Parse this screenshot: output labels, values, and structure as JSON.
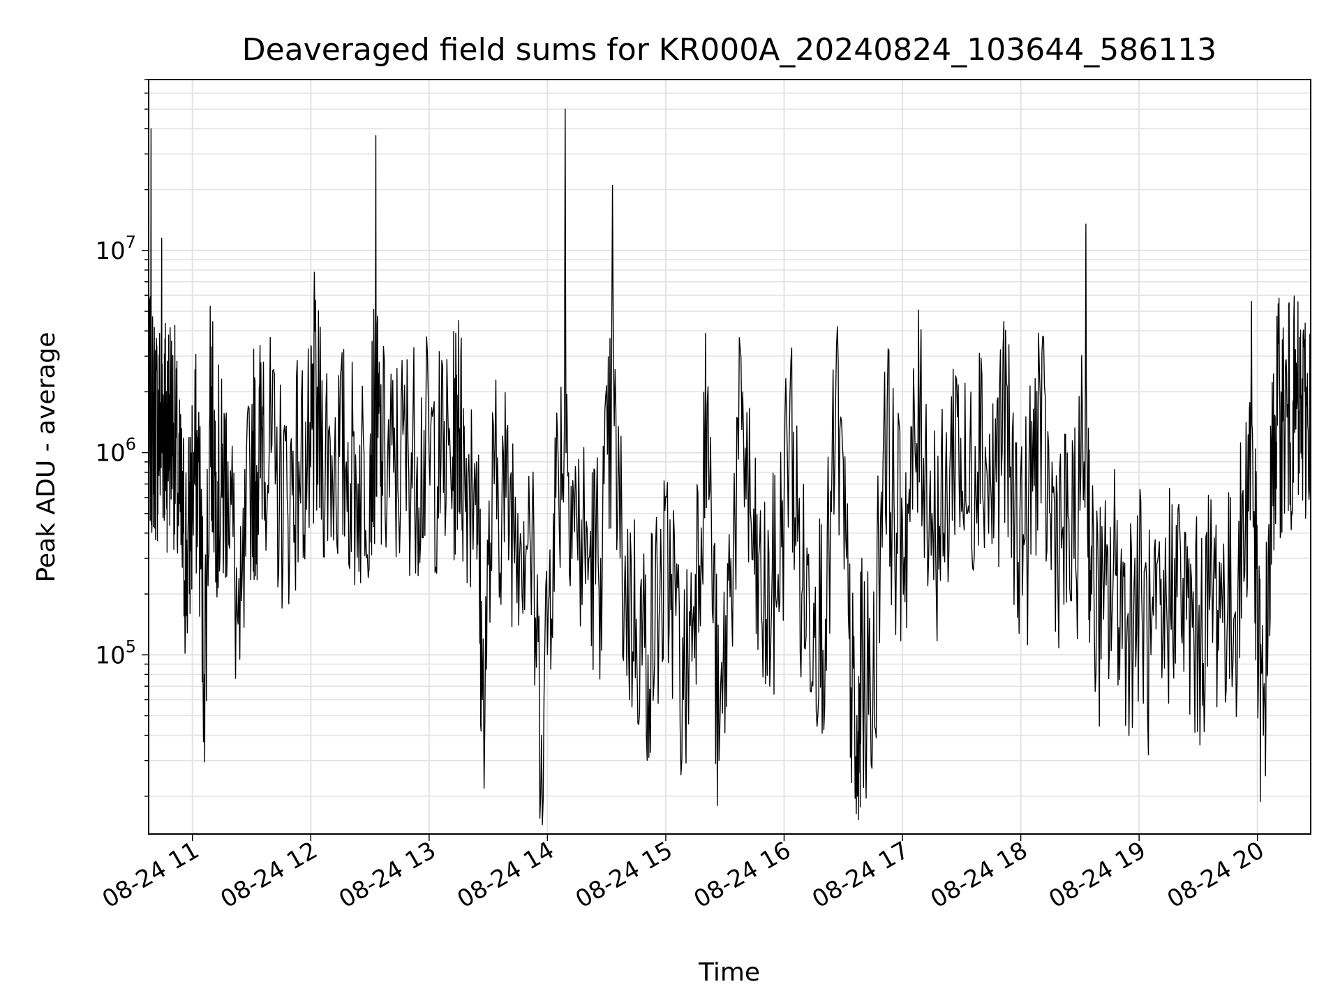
{
  "chart_data": {
    "type": "line",
    "title": "Deaveraged field sums for KR000A_20240824_103644_586113",
    "xlabel": "Time",
    "ylabel": "Peak ADU - average",
    "yscale": "log",
    "grid": true,
    "x_ticks": [
      "08-24 11",
      "08-24 12",
      "08-24 13",
      "08-24 14",
      "08-24 15",
      "08-24 16",
      "08-24 17",
      "08-24 18",
      "08-24 19",
      "08-24 20"
    ],
    "y_ticks": [
      {
        "value": 100000,
        "base": "10",
        "exp": "5"
      },
      {
        "value": 1000000,
        "base": "10",
        "exp": "6"
      },
      {
        "value": 10000000,
        "base": "10",
        "exp": "7"
      }
    ],
    "xlim_hours": [
      10.63,
      20.45
    ],
    "ylim": [
      13000,
      70000000
    ],
    "line_color": "#000000",
    "series": [
      {
        "x_hours": [
          10.63,
          10.65,
          10.68,
          10.71,
          10.74,
          10.76,
          10.78,
          10.8,
          10.84,
          10.88,
          10.92,
          10.96,
          11.0,
          11.05,
          11.1,
          11.15,
          11.2,
          11.25,
          11.3,
          11.4,
          11.5,
          11.55,
          11.6,
          11.7,
          11.8,
          11.9,
          12.0,
          12.03,
          12.1,
          12.2,
          12.3,
          12.4,
          12.5,
          12.55,
          12.6,
          12.7,
          12.8,
          12.9,
          13.0,
          13.1,
          13.2,
          13.25,
          13.3,
          13.4,
          13.45,
          13.55,
          13.65,
          13.75,
          13.85,
          13.95,
          14.05,
          14.15,
          14.25,
          14.35,
          14.45,
          14.55,
          14.65,
          14.75,
          14.85,
          14.95,
          15.05,
          15.15,
          15.25,
          15.35,
          15.45,
          15.55,
          15.65,
          15.75,
          15.85,
          15.95,
          16.05,
          16.15,
          16.25,
          16.35,
          16.45,
          16.55,
          16.62,
          16.65,
          16.75,
          16.85,
          16.95,
          17.05,
          17.15,
          17.25,
          17.35,
          17.45,
          17.55,
          17.65,
          17.75,
          17.85,
          17.95,
          18.05,
          18.15,
          18.25,
          18.35,
          18.45,
          18.55,
          18.6,
          18.7,
          18.8,
          18.9,
          19.0,
          19.1,
          19.2,
          19.3,
          19.4,
          19.5,
          19.6,
          19.7,
          19.8,
          19.9,
          19.95,
          20.0,
          20.05,
          20.1,
          20.15,
          20.2,
          20.25,
          20.3,
          20.35,
          20.4,
          20.45
        ],
        "y": [
          1500000,
          40000000,
          1400000,
          1300000,
          11500000,
          1600000,
          1200000,
          1500000,
          1400000,
          600000,
          400000,
          300000,
          700000,
          900000,
          80000,
          5300000,
          800000,
          600000,
          900000,
          95000,
          1000000,
          800000,
          2800000,
          700000,
          600000,
          900000,
          850000,
          7800000,
          1100000,
          950000,
          900000,
          700000,
          1000000,
          37000000,
          900000,
          800000,
          1000000,
          950000,
          1000000,
          900000,
          950000,
          4500000,
          800000,
          900000,
          60000,
          700000,
          600000,
          500000,
          450000,
          40000,
          500000,
          50000000,
          400000,
          300000,
          300000,
          21000000,
          200000,
          150000,
          100000,
          200000,
          250000,
          60000,
          250000,
          1750000,
          30000,
          300000,
          2000000,
          250000,
          150000,
          250000,
          2000000,
          200000,
          180000,
          150000,
          4200000,
          120000,
          20000,
          80000,
          60000,
          2500000,
          400000,
          500000,
          2000000,
          500000,
          400000,
          2400000,
          500000,
          3100000,
          600000,
          3300000,
          500000,
          400000,
          3900000,
          500000,
          400000,
          300000,
          13500000,
          200000,
          150000,
          250000,
          150000,
          200000,
          100000,
          120000,
          300000,
          150000,
          120000,
          200000,
          200000,
          150000,
          500000,
          5600000,
          120000,
          40000,
          300000,
          1500000,
          2000000,
          1500000,
          1800000,
          1600000,
          2000000,
          3000000
        ]
      }
    ]
  }
}
